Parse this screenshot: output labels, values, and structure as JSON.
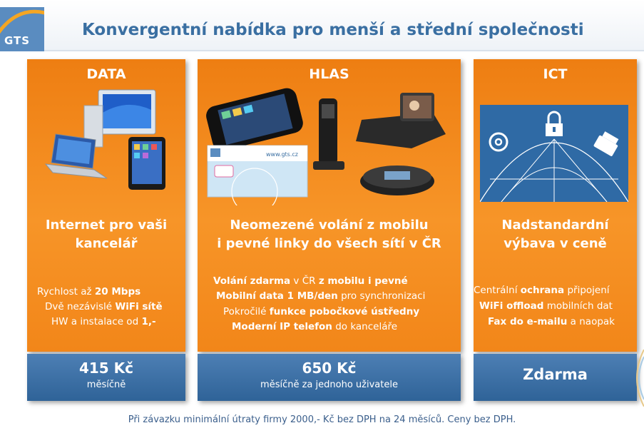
{
  "header": {
    "logo_text": "GTS",
    "title": "Konvergentní nabídka pro menší a střední společnosti"
  },
  "columns": [
    {
      "title": "DATA",
      "headline_1": "Internet pro vaši",
      "headline_2": "kancelář",
      "features": [
        {
          "pre": "Rychlost až ",
          "bold": "20 Mbps",
          "post": ""
        },
        {
          "pre": "Dvě nezávislé ",
          "bold": "WiFi sítě",
          "post": ""
        },
        {
          "pre": "HW a instalace od ",
          "bold": "1,-",
          "post": ""
        }
      ],
      "price": "415 Kč",
      "price_sub": "měsíčně"
    },
    {
      "title": "HLAS",
      "headline_1": "Neomezené  volání z mobilu",
      "headline_2": "i pevné linky do všech sítí v ČR",
      "card_url": "www.gts.cz",
      "features": [
        {
          "bold": "Volání zdarma",
          "mid": " v ČR ",
          "bold2": "z mobilu i pevné",
          "post": ""
        },
        {
          "bold": "Mobilní data 1 MB/den",
          "mid": " pro synchronizaci",
          "bold2": "",
          "post": ""
        },
        {
          "pre": "Pokročilé ",
          "bold": "funkce pobočkové ústředny",
          "post": ""
        },
        {
          "bold": "Moderní IP telefon",
          "mid": " do kanceláře",
          "bold2": "",
          "post": ""
        }
      ],
      "price": "650 Kč",
      "price_sub": "měsíčně za jednoho uživatele"
    },
    {
      "title": "ICT",
      "headline_1": "Nadstandardní",
      "headline_2": "výbava v ceně",
      "features": [
        {
          "pre": "Centrální ",
          "bold": "ochrana",
          "post": " připojení"
        },
        {
          "pre": "",
          "bold": "WiFi offload",
          "post": " mobilních dat"
        },
        {
          "pre": "",
          "bold": "Fax do e-mailu",
          "post": " a naopak"
        }
      ],
      "price": "Zdarma"
    }
  ],
  "footer": "Při závazku  minimální útraty firmy 2000,- Kč bez DPH na 24 měsíců. Ceny bez DPH.",
  "colors": {
    "accent_orange": "#f28b1a",
    "price_blue": "#3a6fa2",
    "title_blue": "#3a6fa2",
    "logo_blue": "#5a8cc0"
  },
  "icons": [
    "gts-logo",
    "computers-illustration",
    "phones-illustration",
    "ict-network-illustration",
    "at-icon",
    "lock-icon",
    "fax-icon"
  ]
}
